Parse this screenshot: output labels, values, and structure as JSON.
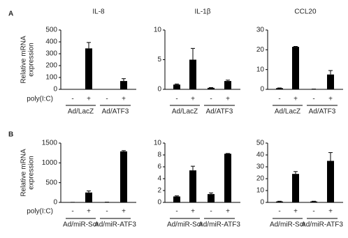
{
  "chart_data": [
    {
      "type": "bar",
      "panel": "A",
      "ylabel": [
        "Relative mRNA",
        "expression"
      ],
      "x_row_label": "poly(I:C)",
      "title": "IL-8",
      "categories": [
        "-",
        "+",
        "-",
        "+"
      ],
      "groups": [
        "Ad/LacZ",
        "Ad/ATF3"
      ],
      "values": [
        0,
        345,
        0,
        70
      ],
      "errors": [
        0,
        50,
        0,
        20
      ],
      "color": "#000000",
      "ylim": [
        0,
        500
      ],
      "yticks": [
        0,
        100,
        200,
        300,
        400,
        500
      ]
    },
    {
      "type": "bar",
      "title": "IL-1β",
      "categories": [
        "-",
        "+",
        "-",
        "+"
      ],
      "groups": [
        "Ad/LacZ",
        "Ad/ATF3"
      ],
      "values": [
        0.8,
        5.0,
        0.25,
        1.4
      ],
      "errors": [
        0.1,
        1.9,
        0.05,
        0.15
      ],
      "color": "#000000",
      "ylim": [
        0,
        10
      ],
      "yticks": [
        0,
        5,
        10
      ]
    },
    {
      "type": "bar",
      "title": "CCL20",
      "categories": [
        "-",
        "+",
        "-",
        "+"
      ],
      "groups": [
        "Ad/LacZ",
        "Ad/ATF3"
      ],
      "values": [
        0.6,
        21.5,
        0.1,
        7.5
      ],
      "errors": [
        0.1,
        0.2,
        0.05,
        2
      ],
      "color": "#000000",
      "ylim": [
        0,
        30
      ],
      "yticks": [
        0,
        10,
        20,
        30
      ]
    },
    {
      "type": "bar",
      "panel": "B",
      "ylabel": [
        "Relative mRNA",
        "expression"
      ],
      "x_row_label": "poly(I:C)",
      "categories": [
        "-",
        "+",
        "-",
        "+"
      ],
      "groups": [
        "Ad/miR-Scr",
        "Ad/miR-ATF3"
      ],
      "values": [
        2,
        250,
        5,
        1290
      ],
      "errors": [
        1,
        40,
        2,
        20
      ],
      "color": "#000000",
      "ylim": [
        0,
        1500
      ],
      "yticks": [
        0,
        500,
        1000,
        1500
      ]
    },
    {
      "type": "bar",
      "categories": [
        "-",
        "+",
        "-",
        "+"
      ],
      "groups": [
        "Ad/miR-Scr",
        "Ad/miR-ATF3"
      ],
      "values": [
        1.0,
        5.4,
        1.4,
        8.2
      ],
      "errors": [
        0.1,
        0.7,
        0.2,
        0.05
      ],
      "color": "#000000",
      "ylim": [
        0,
        10
      ],
      "yticks": [
        0,
        2,
        4,
        6,
        8,
        10
      ]
    },
    {
      "type": "bar",
      "categories": [
        "-",
        "+",
        "-",
        "+"
      ],
      "groups": [
        "Ad/miR-Scr",
        "Ad/miR-ATF3"
      ],
      "values": [
        0.8,
        24,
        0.8,
        35
      ],
      "errors": [
        0.2,
        2,
        0.2,
        7
      ],
      "color": "#000000",
      "ylim": [
        0,
        50
      ],
      "yticks": [
        0,
        10,
        20,
        30,
        40,
        50
      ]
    }
  ]
}
